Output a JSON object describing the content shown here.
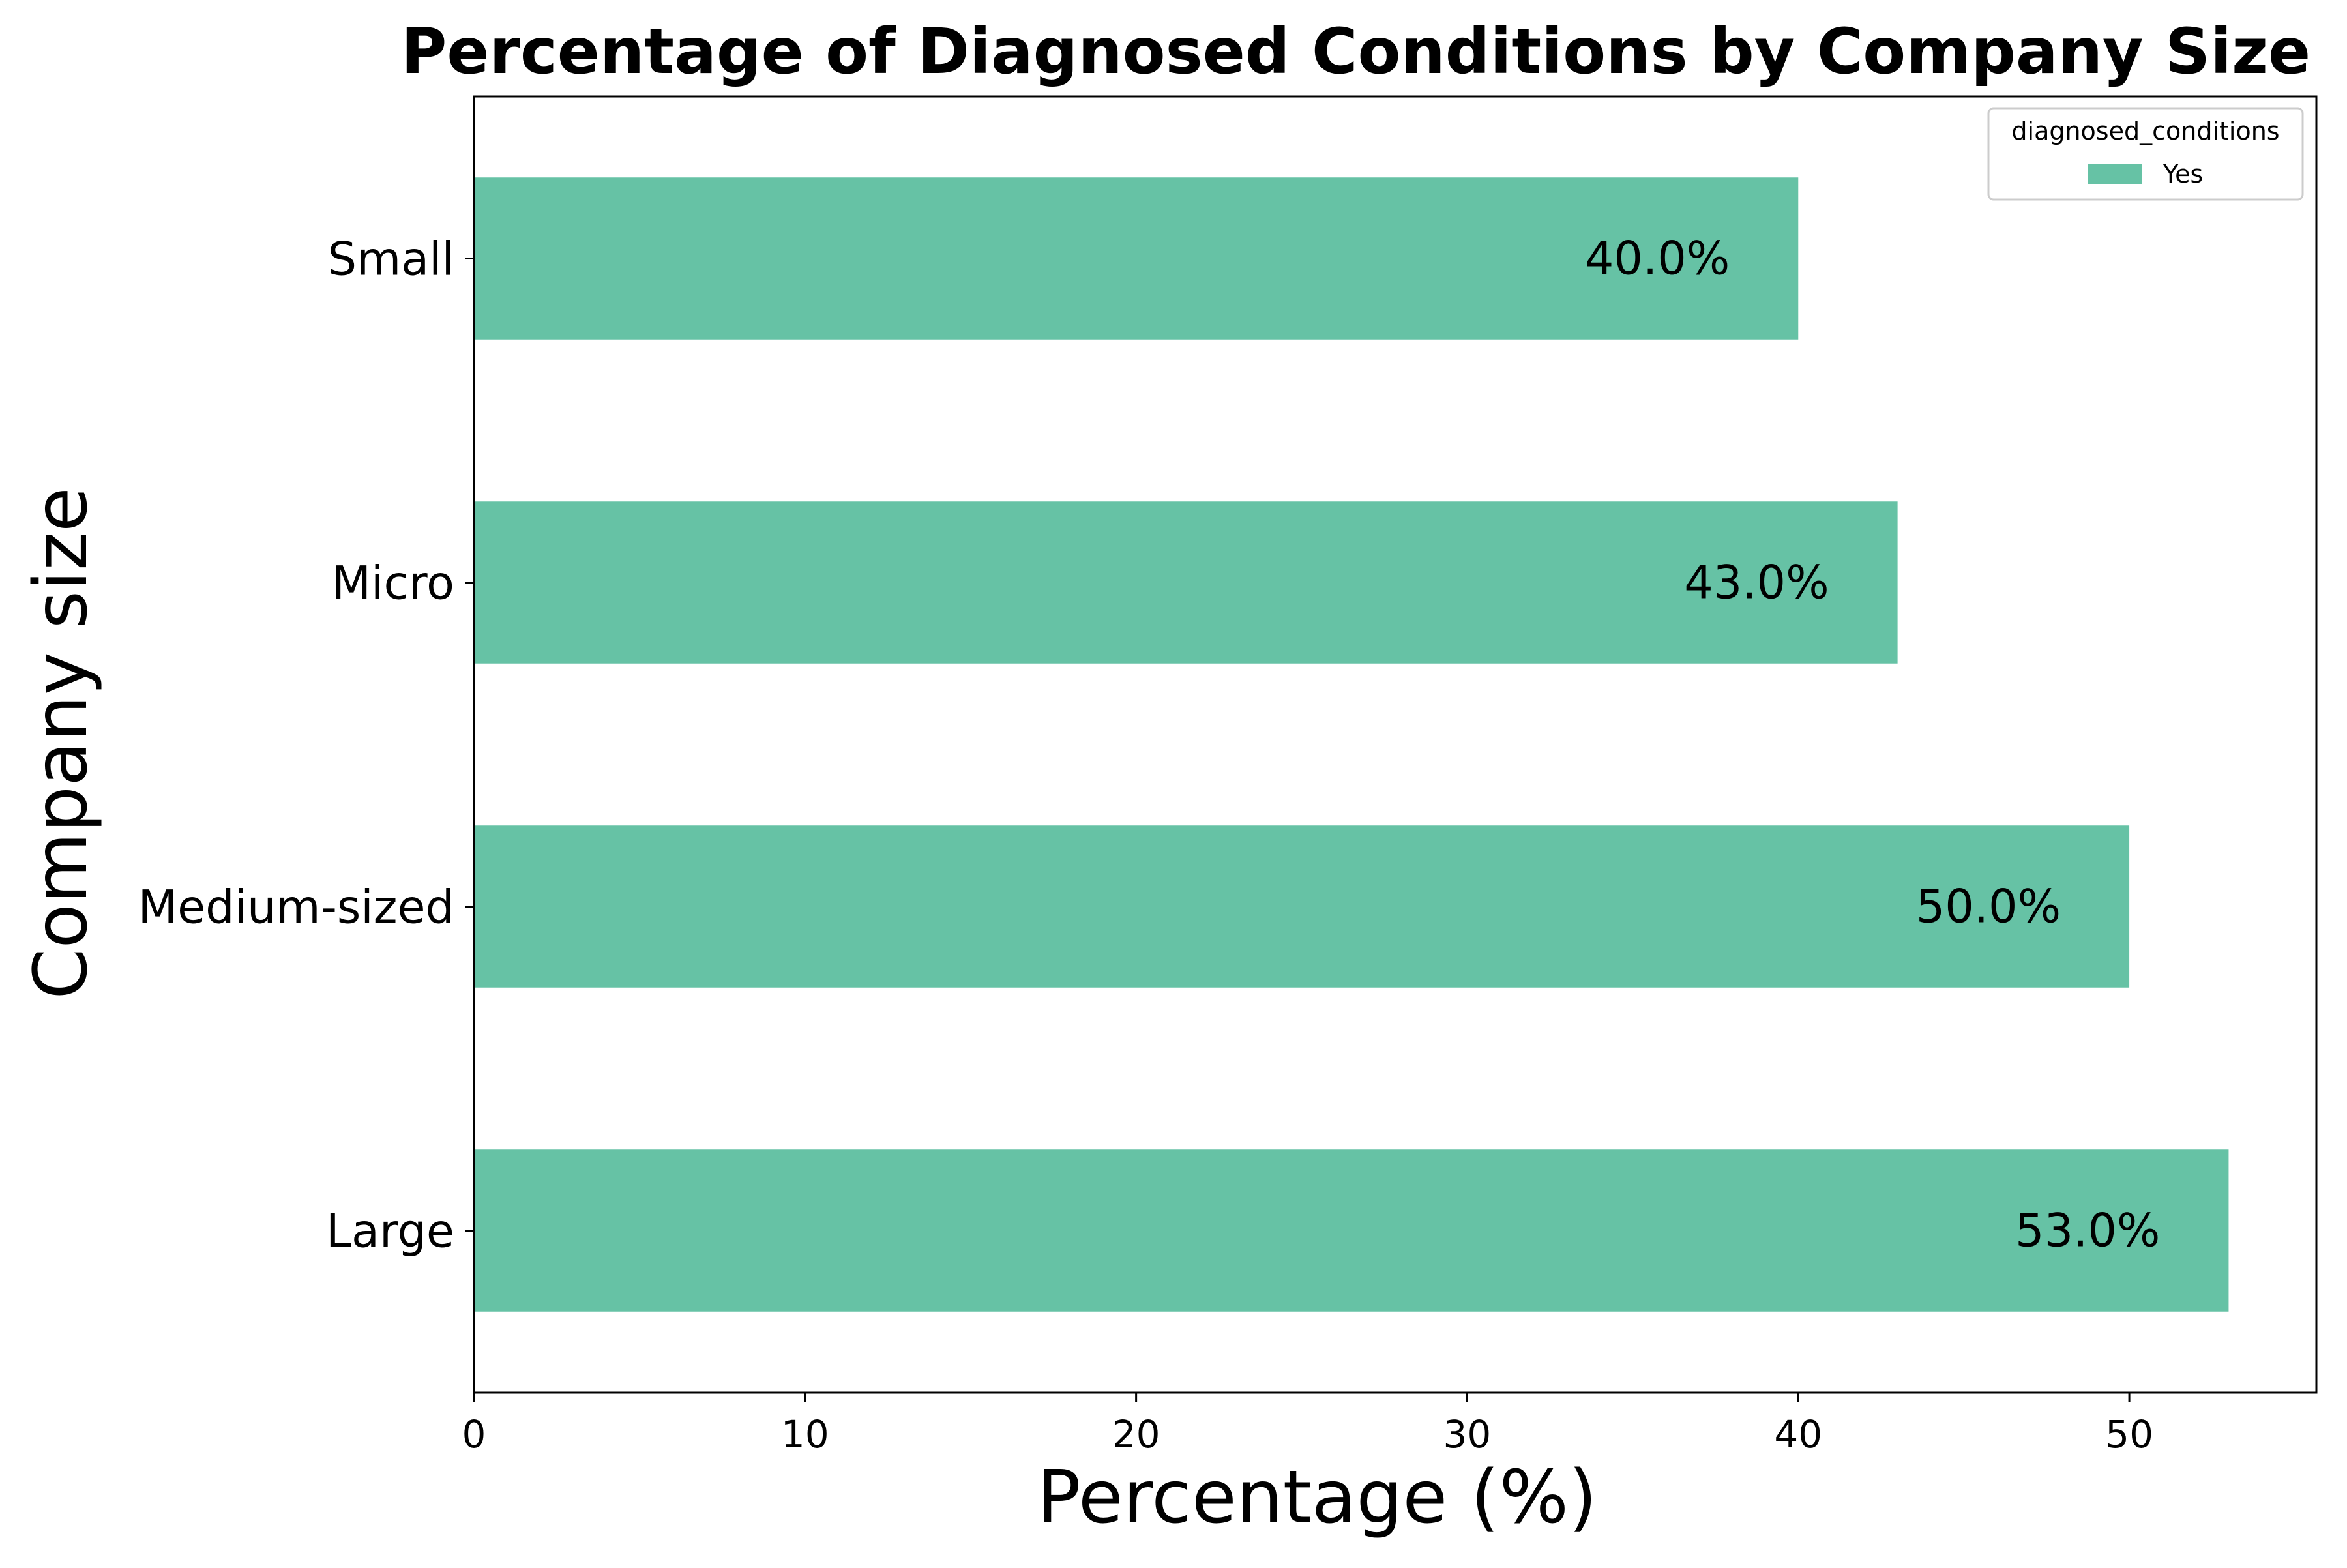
{
  "chart_data": {
    "type": "bar",
    "orientation": "horizontal",
    "title": "Percentage of Diagnosed Conditions by Company Size",
    "xlabel": "Percentage (%)",
    "ylabel": "Company size",
    "categories": [
      "Small",
      "Micro",
      "Medium-sized",
      "Large"
    ],
    "series": [
      {
        "name": "Yes",
        "values": [
          40.0,
          43.0,
          50.0,
          53.0
        ],
        "color": "#66c2a5"
      }
    ],
    "data_labels": [
      "40.0%",
      "43.0%",
      "50.0%",
      "53.0%"
    ],
    "xlim": [
      0,
      55.65
    ],
    "xticks": [
      0,
      10,
      20,
      30,
      40,
      50
    ],
    "xtick_labels": [
      "0",
      "10",
      "20",
      "30",
      "40",
      "50"
    ],
    "legend": {
      "title": "diagnosed_conditions",
      "entries": [
        "Yes"
      ],
      "placement": "top-right"
    },
    "grid": false
  }
}
